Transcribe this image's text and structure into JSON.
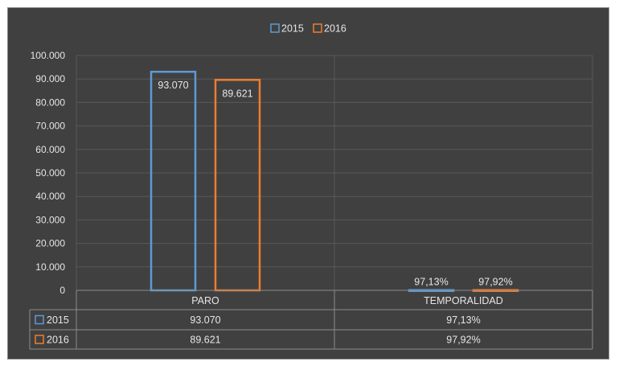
{
  "chart_data": {
    "type": "bar",
    "categories": [
      "PARO",
      "TEMPORALIDAD"
    ],
    "series": [
      {
        "name": "2015",
        "values": [
          93070,
          97.13
        ],
        "labels": [
          "93.070",
          "97,13%"
        ],
        "color": "#5b9bd5"
      },
      {
        "name": "2016",
        "values": [
          89621,
          97.92
        ],
        "labels": [
          "89.621",
          "97,92%"
        ],
        "color": "#ed7d31"
      }
    ],
    "ylim": [
      0,
      100000
    ],
    "yticks": [
      "0",
      "10.000",
      "20.000",
      "30.000",
      "40.000",
      "50.000",
      "60.000",
      "70.000",
      "80.000",
      "90.000",
      "100.000"
    ],
    "legend": "top-center",
    "grid": true,
    "data_table": true
  },
  "colors": {
    "background": "#404040",
    "gridline": "#595959",
    "text": "#e6e6e6"
  }
}
